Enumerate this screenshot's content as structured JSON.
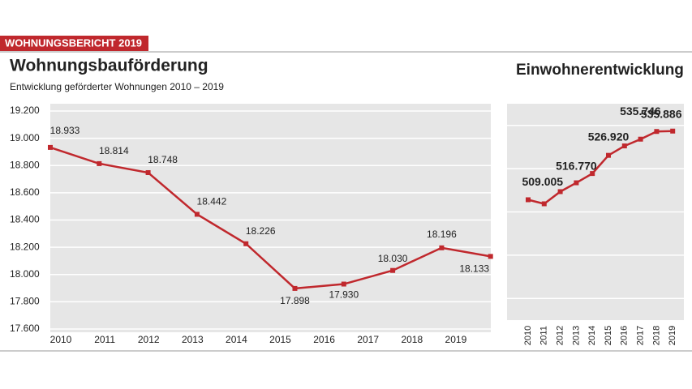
{
  "header": {
    "banner": "WOHNUNGSBERICHT 2019"
  },
  "chart_data": [
    {
      "type": "line",
      "title": "Wohnungsbauförderung",
      "subtitle": "Entwicklung geförderter Wohnungen 2010 – 2019",
      "categories": [
        "2010",
        "2011",
        "2012",
        "2013",
        "2014",
        "2015",
        "2016",
        "2017",
        "2018",
        "2019"
      ],
      "values": [
        18933,
        18814,
        18748,
        18442,
        18226,
        17898,
        17930,
        18030,
        18196,
        18133
      ],
      "value_labels": [
        "18.933",
        "18.814",
        "18.748",
        "18.442",
        "18.226",
        "17.898",
        "17.930",
        "18.030",
        "18.196",
        "18.133"
      ],
      "color": "#c0282d",
      "ylim": [
        17600,
        19200
      ],
      "yticks": [
        {
          "value": 17600,
          "label": "17.600"
        },
        {
          "value": 17800,
          "label": "17.800"
        },
        {
          "value": 18000,
          "label": "18.000"
        },
        {
          "value": 18200,
          "label": "18.200"
        },
        {
          "value": 18400,
          "label": "18.400"
        },
        {
          "value": 18600,
          "label": "18.600"
        },
        {
          "value": 18800,
          "label": "18.800"
        },
        {
          "value": 19000,
          "label": "19.000"
        },
        {
          "value": 19200,
          "label": "19.200"
        }
      ],
      "grid": true
    },
    {
      "type": "line",
      "title": "Einwohnerentwicklung",
      "categories": [
        "2010",
        "2011",
        "2012",
        "2013",
        "2014",
        "2015",
        "2016",
        "2017",
        "2018",
        "2019"
      ],
      "values": [
        510500,
        509005,
        513500,
        516770,
        520200,
        526920,
        530400,
        532900,
        535746,
        535886
      ],
      "value_labels": [
        null,
        "509.005",
        null,
        "516.770",
        null,
        "526.920",
        null,
        null,
        "535.746",
        "535.886"
      ],
      "color": "#c0282d",
      "ylim": [
        466000,
        546000
      ],
      "yticks": [
        474000,
        490000,
        506000,
        522000,
        538000
      ],
      "grid": true
    }
  ]
}
